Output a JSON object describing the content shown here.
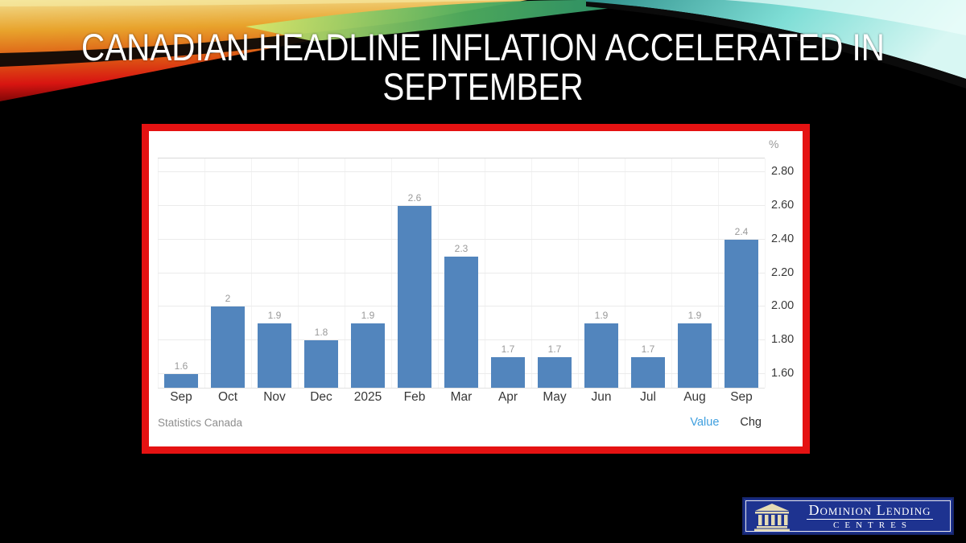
{
  "slide": {
    "title_line1": "CANADIAN HEADLINE INFLATION ACCELERATED IN",
    "title_line2": "SEPTEMBER"
  },
  "chart_data": {
    "type": "bar",
    "title": "",
    "unit": "%",
    "categories": [
      "Sep",
      "Oct",
      "Nov",
      "Dec",
      "2025",
      "Feb",
      "Mar",
      "Apr",
      "May",
      "Jun",
      "Jul",
      "Aug",
      "Sep"
    ],
    "values": [
      1.6,
      2,
      1.9,
      1.8,
      1.9,
      2.6,
      2.3,
      1.7,
      1.7,
      1.9,
      1.7,
      1.9,
      2.4
    ],
    "value_labels": [
      "1.6",
      "2",
      "1.9",
      "1.8",
      "1.9",
      "2.6",
      "2.3",
      "1.7",
      "1.7",
      "1.9",
      "1.7",
      "1.9",
      "2.4"
    ],
    "yticks": [
      1.6,
      1.8,
      2.0,
      2.2,
      2.4,
      2.6,
      2.8
    ],
    "ytick_labels": [
      "1.60",
      "1.80",
      "2.00",
      "2.20",
      "2.40",
      "2.60",
      "2.80"
    ],
    "ylim": [
      1.52,
      2.88
    ],
    "grid": true,
    "legend_position": "none",
    "bar_color": "#5285bd",
    "source": "Statistics Canada",
    "toggles": [
      {
        "label": "Value",
        "active": true
      },
      {
        "label": "Chg",
        "active": false
      }
    ]
  },
  "logo": {
    "icon": "building-columns-icon",
    "name": "Dominion Lending",
    "sub": "Centres"
  },
  "colors": {
    "frame_red": "#e51212",
    "bar_blue": "#5285bd",
    "toggle_active_blue": "#3f9fdf",
    "logo_navy": "#1e3390",
    "slide_background": "#000000"
  }
}
